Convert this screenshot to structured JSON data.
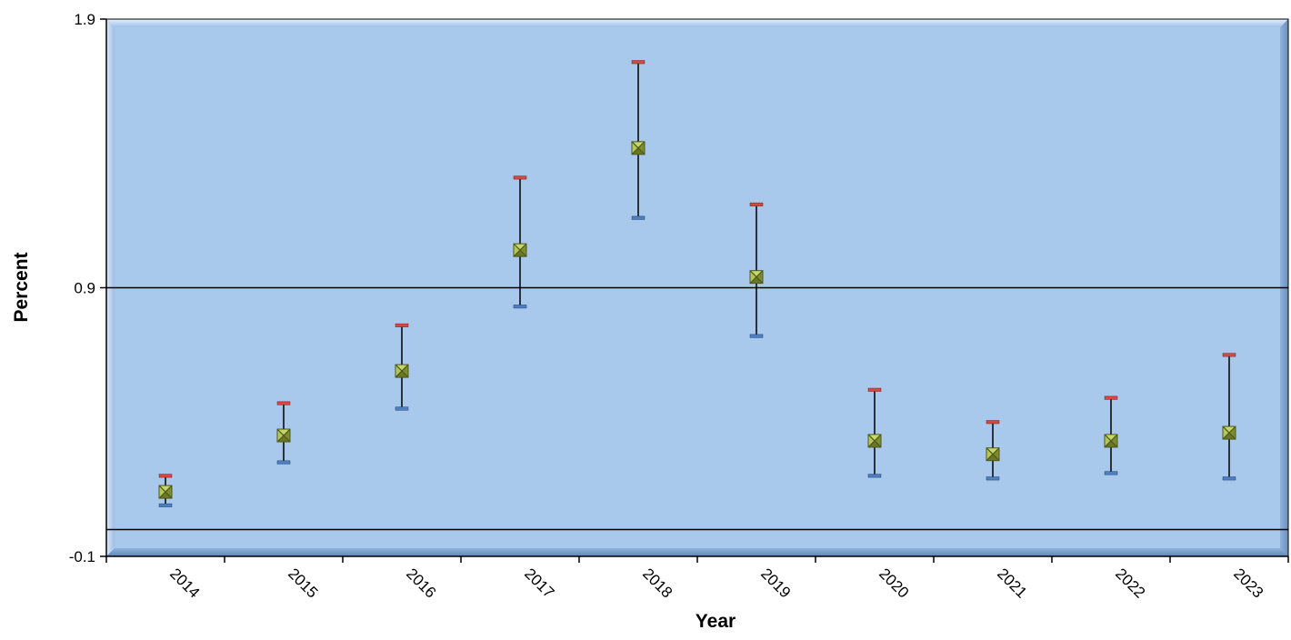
{
  "chart_data": {
    "type": "scatter",
    "title": "",
    "xlabel": "Year",
    "ylabel": "Percent",
    "categories": [
      "2014",
      "2015",
      "2016",
      "2017",
      "2018",
      "2019",
      "2020",
      "2021",
      "2022",
      "2023"
    ],
    "ylim": [
      -0.1,
      1.9
    ],
    "y_tick_labels": [
      "-0.1",
      "0.9",
      "1.9"
    ],
    "y_ticks": [
      -0.1,
      0.9,
      1.9
    ],
    "reference_lines": [
      0.9,
      0.0
    ],
    "series": [
      {
        "values": [
          0.14,
          0.35,
          0.59,
          1.04,
          1.42,
          0.94,
          0.33,
          0.28,
          0.33,
          0.36
        ],
        "upper": [
          0.2,
          0.47,
          0.76,
          1.31,
          1.74,
          1.21,
          0.52,
          0.4,
          0.49,
          0.65
        ],
        "lower": [
          0.09,
          0.25,
          0.45,
          0.83,
          1.16,
          0.72,
          0.2,
          0.19,
          0.21,
          0.19
        ]
      }
    ],
    "grid": false,
    "legend": "none",
    "colors": {
      "plot_bg": "#a8c8ec",
      "plot_bg_light": "#bcd6f2",
      "marker_fill": "#a9bc4a",
      "marker_dark": "#4e5a18",
      "upper_cap": "#d04a3f",
      "lower_cap": "#4f7fc0",
      "axis": "#000000"
    }
  }
}
